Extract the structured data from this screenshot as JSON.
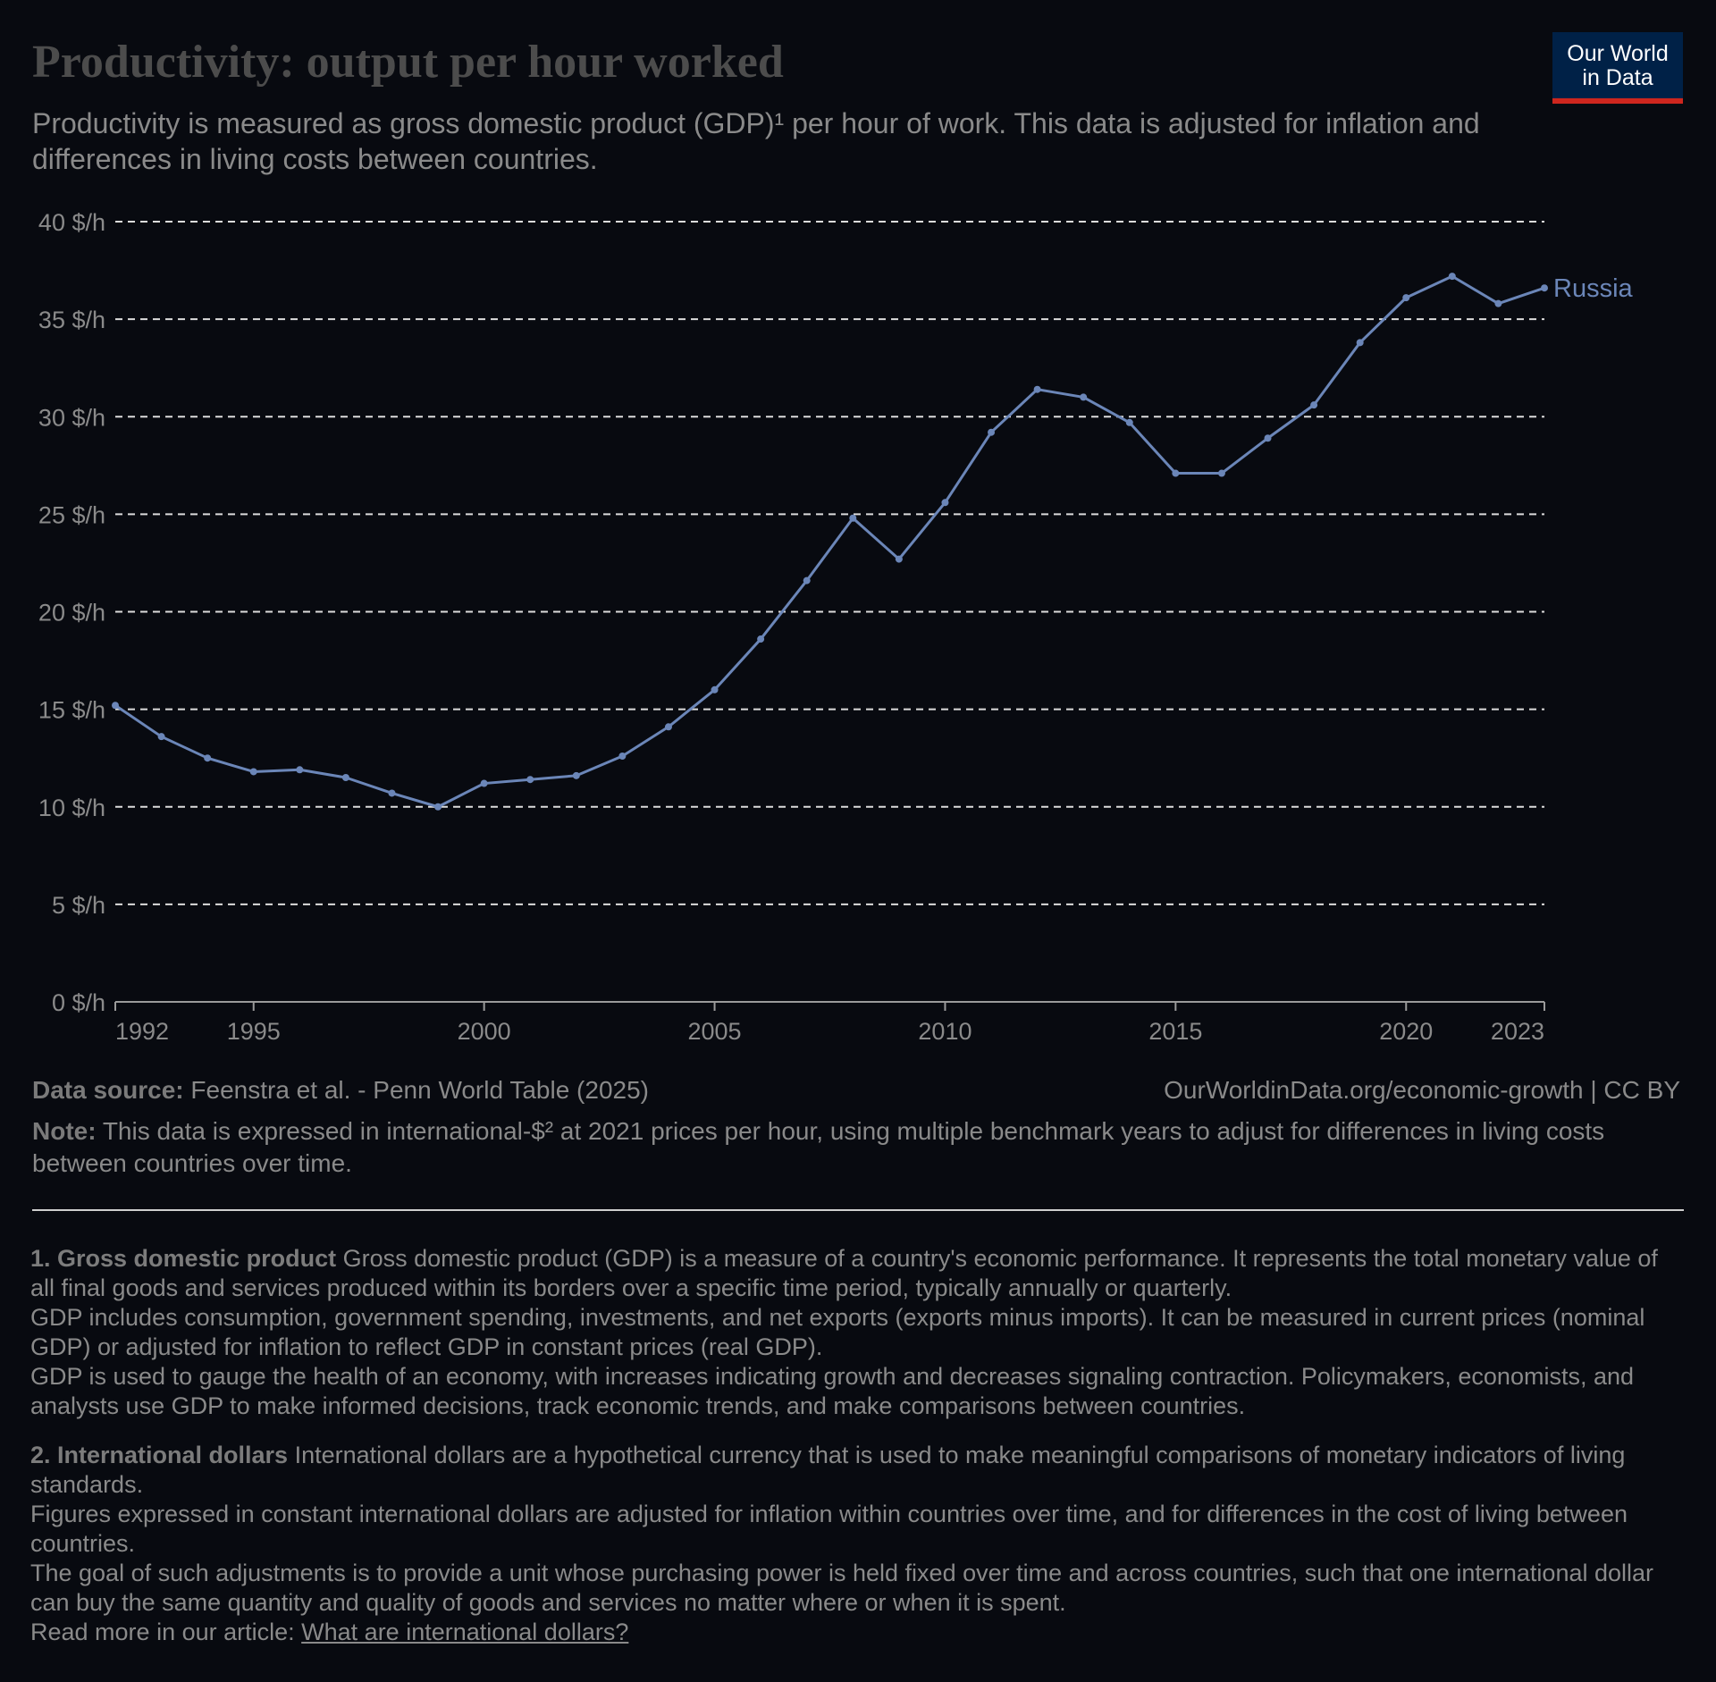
{
  "header": {
    "title": "Productivity: output per hour worked",
    "subtitle": "Productivity is measured as gross domestic product (GDP)¹ per hour of work. This data is adjusted for inflation and differences in living costs between countries."
  },
  "logo": {
    "line1": "Our World",
    "line2": "in Data"
  },
  "colors": {
    "background": "#080a10",
    "series": "#6b86b8",
    "logo_bg": "#002147",
    "logo_accent": "#ce261e"
  },
  "chart_data": {
    "type": "line",
    "title": "Productivity: output per hour worked",
    "xlabel": "",
    "ylabel": "",
    "ylim": [
      0,
      40
    ],
    "y_ticks": [
      0,
      5,
      10,
      15,
      20,
      25,
      30,
      35,
      40
    ],
    "y_tick_labels": [
      "0 $/h",
      "5 $/h",
      "10 $/h",
      "15 $/h",
      "20 $/h",
      "25 $/h",
      "30 $/h",
      "35 $/h",
      "40 $/h"
    ],
    "xlim": [
      1992,
      2023
    ],
    "x_ticks": [
      1992,
      1995,
      2000,
      2005,
      2010,
      2015,
      2020,
      2023
    ],
    "grid": "horizontal dashed",
    "series": [
      {
        "name": "Russia",
        "x": [
          1992,
          1993,
          1994,
          1995,
          1996,
          1997,
          1998,
          1999,
          2000,
          2001,
          2002,
          2003,
          2004,
          2005,
          2006,
          2007,
          2008,
          2009,
          2010,
          2011,
          2012,
          2013,
          2014,
          2015,
          2016,
          2017,
          2018,
          2019,
          2020,
          2021,
          2022,
          2023
        ],
        "values": [
          15.2,
          13.6,
          12.5,
          11.8,
          11.9,
          11.5,
          10.7,
          10.0,
          11.2,
          11.4,
          11.6,
          12.6,
          14.1,
          16.0,
          18.6,
          21.6,
          24.8,
          22.7,
          25.6,
          29.2,
          31.4,
          31.0,
          29.7,
          27.1,
          27.1,
          28.9,
          30.6,
          33.8,
          36.1,
          37.2,
          35.8,
          36.6
        ]
      }
    ]
  },
  "footer": {
    "source_label": "Data source:",
    "source_text": "Feenstra et al. - Penn World Table (2025)",
    "url_text": "OurWorldinData.org/economic-growth | CC BY",
    "note_label": "Note:",
    "note_text": "This data is expressed in international-$² at 2021 prices per hour, using multiple benchmark years to adjust for differences in living costs between countries over time."
  },
  "notes": {
    "n1_label": "1. Gross domestic product",
    "n1_p1": "Gross domestic product (GDP) is a measure of a country's economic performance. It represents the total monetary value of all final goods and services produced within its borders over a specific time period, typically annually or quarterly.",
    "n1_p2": "GDP includes consumption, government spending, investments, and net exports (exports minus imports). It can be measured in current prices (nominal GDP) or adjusted for inflation to reflect GDP in constant prices (real GDP).",
    "n1_p3": "GDP is used to gauge the health of an economy, with increases indicating growth and decreases signaling contraction. Policymakers, economists, and analysts use GDP to make informed decisions, track economic trends, and make comparisons between countries.",
    "n2_label": "2. International dollars",
    "n2_p1": "International dollars are a hypothetical currency that is used to make meaningful comparisons of monetary indicators of living standards.",
    "n2_p2": "Figures expressed in constant international dollars are adjusted for inflation within countries over time, and for differences in the cost of living between countries.",
    "n2_p3": "The goal of such adjustments is to provide a unit whose purchasing power is held fixed over time and across countries, such that one international dollar can buy the same quantity and quality of goods and services no matter where or when it is spent.",
    "read_more_prefix": "Read more in our article:",
    "read_more_link": "What are international dollars?"
  }
}
